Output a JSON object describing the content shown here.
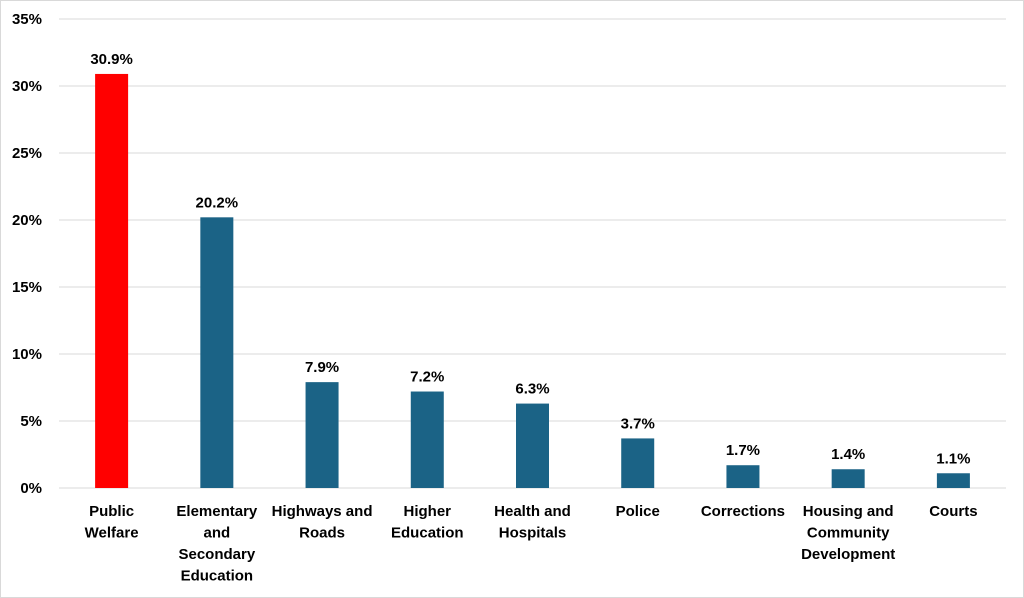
{
  "chart_data": {
    "type": "bar",
    "title": "",
    "xlabel": "",
    "ylabel": "",
    "ylim": [
      0,
      35
    ],
    "yticks": [
      0,
      5,
      10,
      15,
      20,
      25,
      30,
      35
    ],
    "ytick_labels": [
      "0%",
      "5%",
      "10%",
      "15%",
      "20%",
      "25%",
      "30%",
      "35%"
    ],
    "grid": true,
    "categories": [
      [
        "Public",
        "Welfare"
      ],
      [
        "Elementary",
        "and",
        "Secondary",
        "Education"
      ],
      [
        "Highways and",
        "Roads"
      ],
      [
        "Higher",
        "Education"
      ],
      [
        "Health and",
        "Hospitals"
      ],
      [
        "Police"
      ],
      [
        "Corrections"
      ],
      [
        "Housing and",
        "Community",
        "Development"
      ],
      [
        "Courts"
      ]
    ],
    "values": [
      30.9,
      20.2,
      7.9,
      7.2,
      6.3,
      3.7,
      1.7,
      1.4,
      1.1
    ],
    "data_labels": [
      "30.9%",
      "20.2%",
      "7.9%",
      "7.2%",
      "6.3%",
      "3.7%",
      "1.7%",
      "1.4%",
      "1.1%"
    ],
    "colors": [
      "#ff0000",
      "#1b6386",
      "#1b6386",
      "#1b6386",
      "#1b6386",
      "#1b6386",
      "#1b6386",
      "#1b6386",
      "#1b6386"
    ],
    "gridline_color": "#d9d9d9"
  }
}
